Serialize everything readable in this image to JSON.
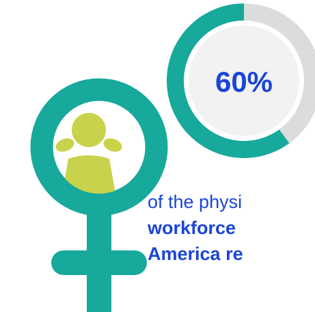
{
  "chart_data": {
    "type": "donut",
    "values": [
      60,
      40
    ],
    "value_labels": [
      "60%",
      null
    ],
    "colors": [
      "#17a99b",
      "#dadcdd"
    ],
    "annotations": [
      "of the physi",
      "workforce",
      "America re"
    ]
  }
}
